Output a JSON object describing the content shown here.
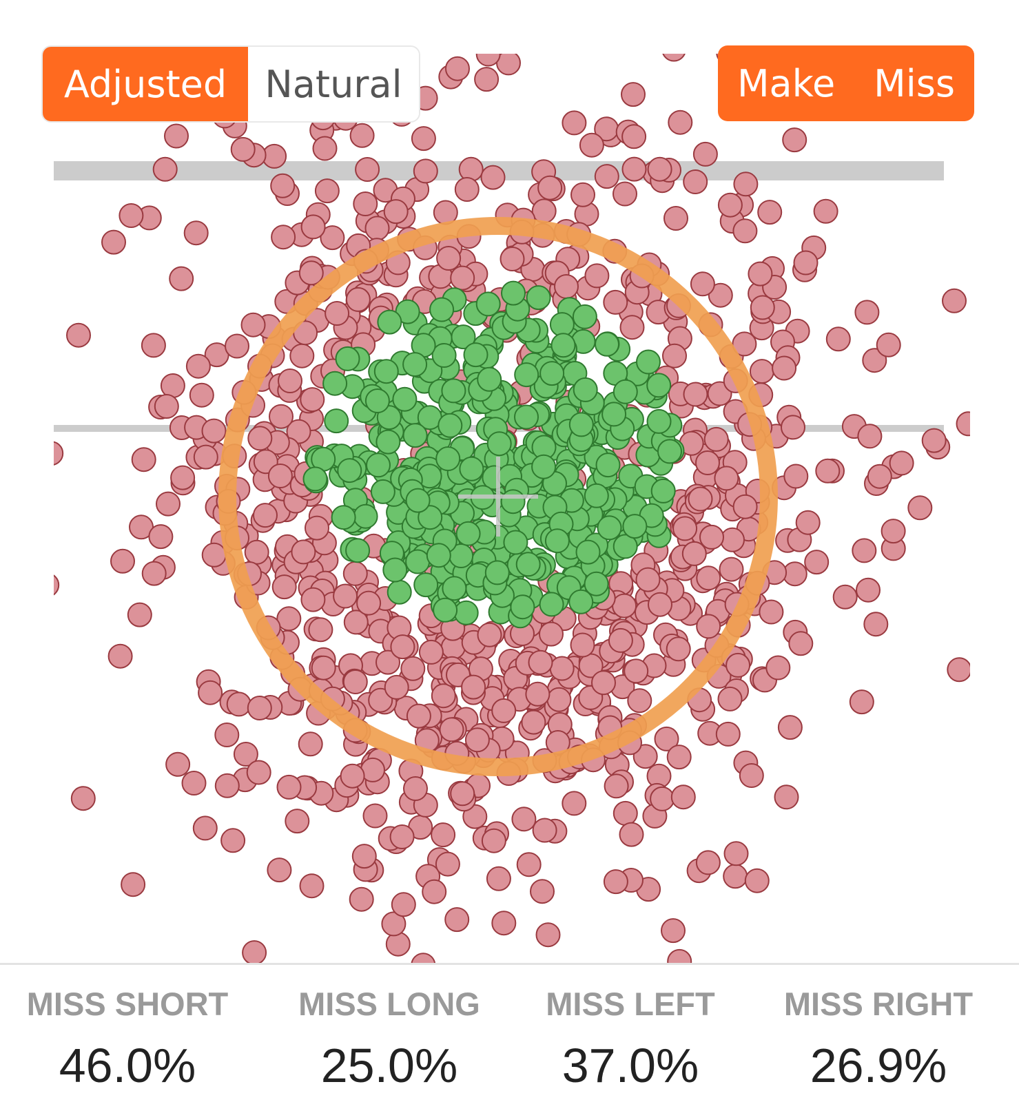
{
  "view_toggle": {
    "options": [
      {
        "label": "Adjusted",
        "active": true
      },
      {
        "label": "Natural",
        "active": false
      }
    ]
  },
  "filters": {
    "make_label": "Make",
    "miss_label": "Miss"
  },
  "colors": {
    "accent": "#ff6a1f",
    "ring": "#f0a050",
    "make_fill": "#6cc36c",
    "make_stroke": "#2f7a2f",
    "miss_fill": "#dc9299",
    "miss_stroke": "#9a3a40",
    "guide_line": "#cccccc"
  },
  "stats": [
    {
      "label": "MISS SHORT",
      "value": "46.0%"
    },
    {
      "label": "MISS LONG",
      "value": "25.0%"
    },
    {
      "label": "MISS LEFT",
      "value": "37.0%"
    },
    {
      "label": "MISS RIGHT",
      "value": "26.9%"
    }
  ]
}
